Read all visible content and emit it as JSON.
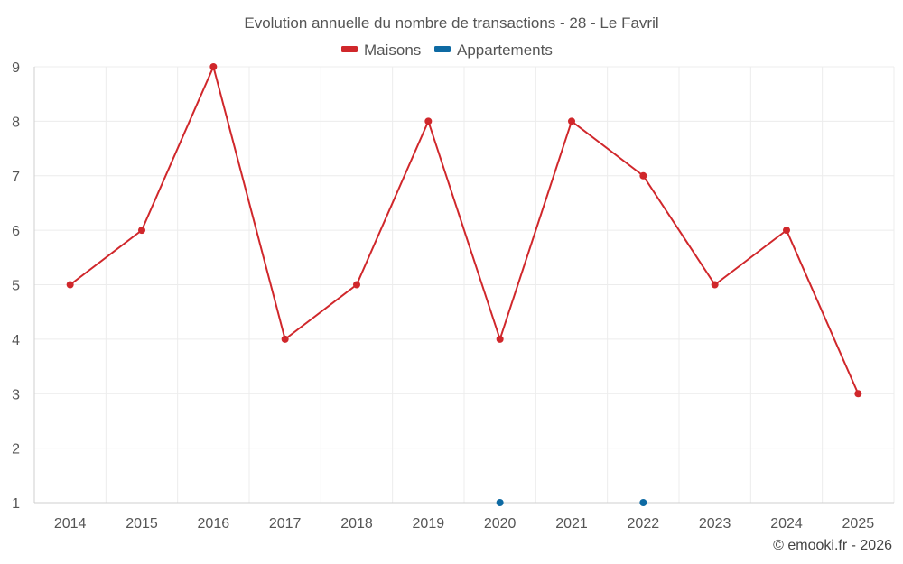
{
  "chart_data": {
    "type": "line",
    "title": "Evolution annuelle du nombre de transactions - 28 - Le Favril",
    "categories": [
      "2014",
      "2015",
      "2016",
      "2017",
      "2018",
      "2019",
      "2020",
      "2021",
      "2022",
      "2023",
      "2024",
      "2025"
    ],
    "ylim": [
      1,
      9
    ],
    "yticks": [
      1,
      2,
      3,
      4,
      5,
      6,
      7,
      8,
      9
    ],
    "grid": true,
    "legend_position": "top-center",
    "series": [
      {
        "name": "Maisons",
        "color": "#d0272b",
        "values": [
          5,
          6,
          9,
          4,
          5,
          8,
          4,
          8,
          7,
          5,
          6,
          3
        ]
      },
      {
        "name": "Appartements",
        "color": "#0e6aa3",
        "values": [
          null,
          null,
          null,
          null,
          null,
          null,
          1,
          null,
          1,
          null,
          null,
          null
        ]
      }
    ],
    "credit": "© emooki.fr - 2026"
  }
}
